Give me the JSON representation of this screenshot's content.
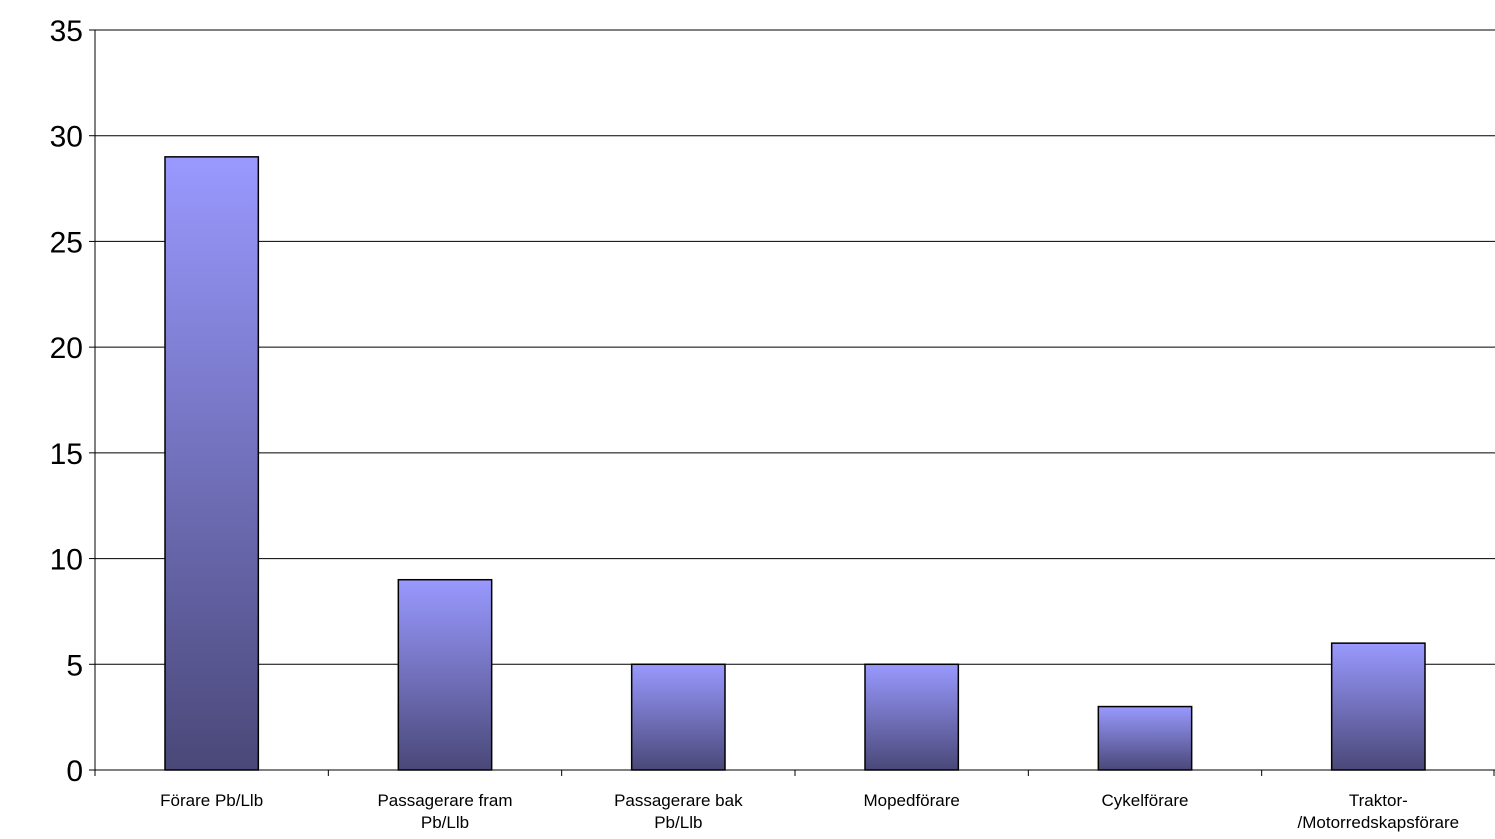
{
  "chart_data": {
    "type": "bar",
    "title": "",
    "xlabel": "",
    "ylabel": "",
    "categories": [
      [
        "Förare Pb/Llb"
      ],
      [
        "Passagerare fram",
        "Pb/Llb"
      ],
      [
        "Passagerare bak",
        "Pb/Llb"
      ],
      [
        "Mopedförare"
      ],
      [
        "Cykelförare"
      ],
      [
        "Traktor-",
        "/Motorredskapsförare"
      ]
    ],
    "values": [
      29,
      9,
      5,
      5,
      3,
      6
    ],
    "ylim": [
      0,
      35
    ],
    "yticks": [
      "0",
      "5",
      "10",
      "15",
      "20",
      "25",
      "30",
      "35"
    ],
    "grid": true,
    "legend": "none",
    "colors": {
      "bar_top": "#9999ff",
      "bar_bottom": "#4a4878",
      "bar_stroke": "#000000",
      "grid": "#000000"
    }
  }
}
